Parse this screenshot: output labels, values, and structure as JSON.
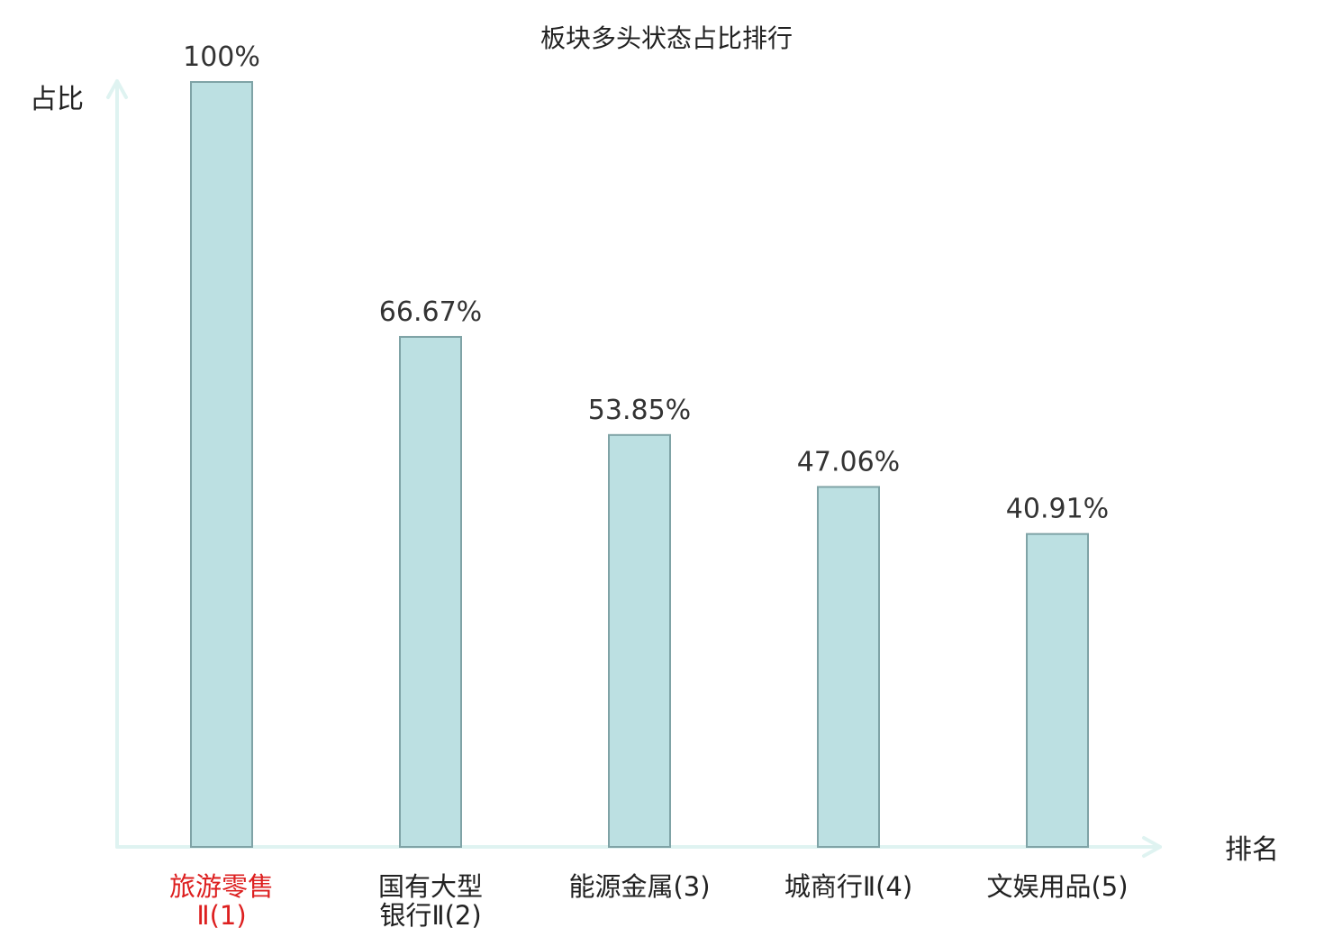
{
  "chart_data": {
    "type": "bar",
    "title": "板块多头状态占比排行",
    "xlabel": "排名",
    "ylabel": "占比",
    "ylim": [
      0,
      100
    ],
    "grid": false,
    "categories": [
      [
        "旅游零售",
        "Ⅱ(1)"
      ],
      [
        "国有大型",
        "银行Ⅱ(2)"
      ],
      [
        "能源金属(3)"
      ],
      [
        "城商行Ⅱ(4)"
      ],
      [
        "文娱用品(5)"
      ]
    ],
    "values": [
      100,
      66.67,
      53.85,
      47.06,
      40.91
    ],
    "value_labels": [
      "100%",
      "66.67%",
      "53.85%",
      "47.06%",
      "40.91%"
    ],
    "highlight_index": 0
  },
  "colors": {
    "bar_fill": "#bce0e2",
    "bar_stroke": "#7fa3a6",
    "axis": "#dff3f1",
    "highlight_text": "#dd1f1f",
    "text": "#222222"
  }
}
